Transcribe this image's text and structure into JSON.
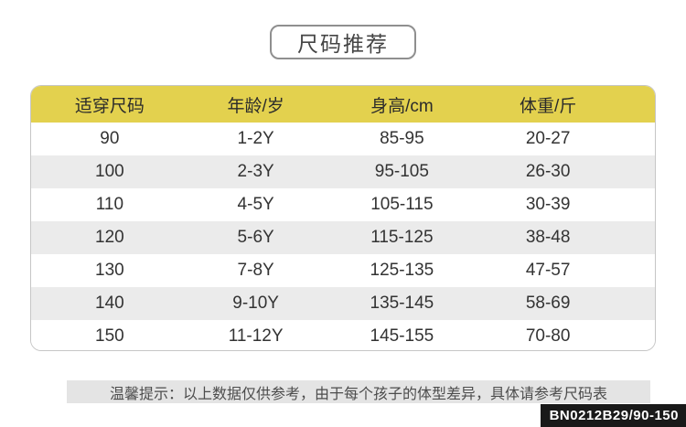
{
  "title": {
    "label": "尺码推荐"
  },
  "chart_data": {
    "type": "table",
    "title": "尺码推荐",
    "columns": [
      "适穿尺码",
      "年龄/岁",
      "身高/cm",
      "体重/斤"
    ],
    "rows": [
      [
        "90",
        "1-2Y",
        "85-95",
        "20-27"
      ],
      [
        "100",
        "2-3Y",
        "95-105",
        "26-30"
      ],
      [
        "110",
        "4-5Y",
        "105-115",
        "30-39"
      ],
      [
        "120",
        "5-6Y",
        "115-125",
        "38-48"
      ],
      [
        "130",
        "7-8Y",
        "125-135",
        "47-57"
      ],
      [
        "140",
        "9-10Y",
        "135-145",
        "58-69"
      ],
      [
        "150",
        "11-12Y",
        "145-155",
        "70-80"
      ]
    ],
    "layout_hints": {
      "header_style": "yellow band",
      "zebra_striping": true,
      "rounded_border": true
    }
  },
  "note": {
    "text": "温馨提示：以上数据仅供参考，由于每个孩子的体型差异，具体请参考尺码表"
  },
  "badge": {
    "text": "BN0212B29/90-150"
  },
  "colors": {
    "header_bg": "#e3d14e",
    "row_alt_bg": "#ebebeb",
    "table_border": "#c6c6c6",
    "note_bg": "#e4e4e4",
    "badge_bg": "#191919",
    "badge_text": "#ffffff",
    "title_border": "#8f8f8f"
  }
}
